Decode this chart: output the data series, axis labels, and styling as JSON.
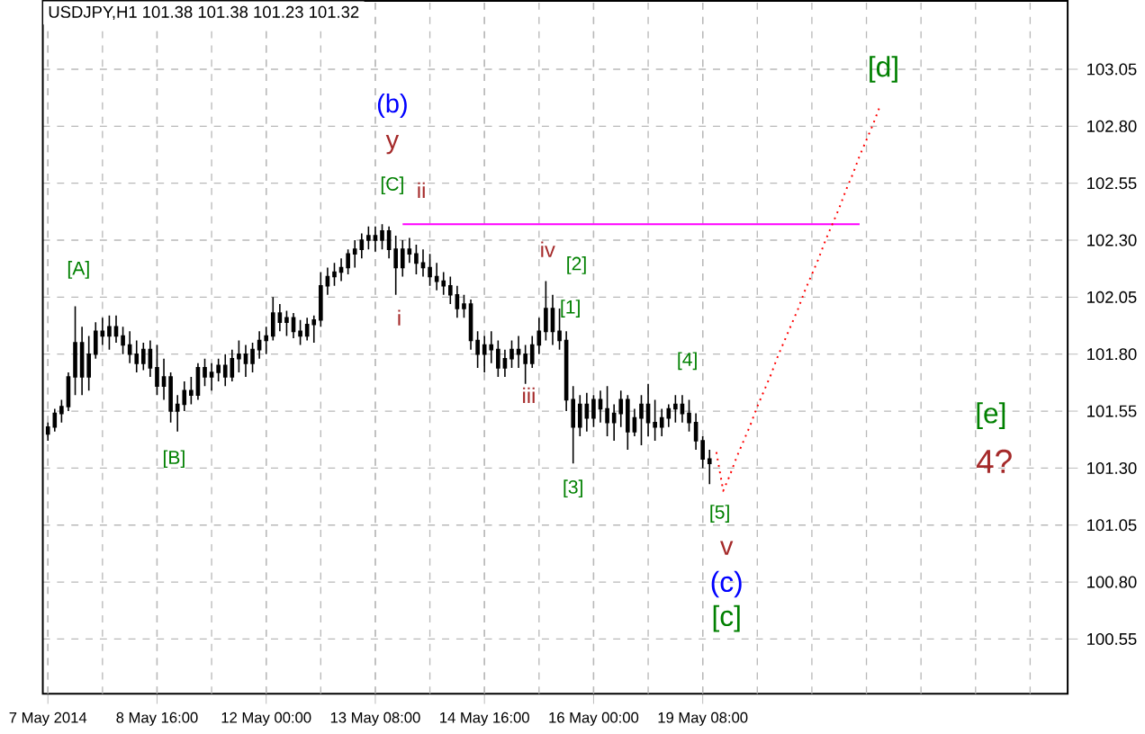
{
  "chart_data": {
    "type": "candlestick",
    "title": "USDJPY,H1  101.38 101.38 101.23 101.32",
    "color": "#000000",
    "categories": [
      "7 May 2014",
      null,
      null,
      null,
      null,
      null,
      null,
      null,
      null,
      null,
      null,
      null,
      null,
      null,
      null,
      null,
      "8 May 16:00",
      null,
      null,
      null,
      null,
      null,
      null,
      null,
      null,
      null,
      null,
      null,
      null,
      null,
      null,
      null,
      "12 May 00:00",
      null,
      null,
      null,
      null,
      null,
      null,
      null,
      null,
      null,
      null,
      null,
      null,
      null,
      null,
      null,
      "13 May 08:00",
      null,
      null,
      null,
      null,
      null,
      null,
      null,
      null,
      null,
      null,
      null,
      null,
      null,
      null,
      null,
      "14 May 16:00",
      null,
      null,
      null,
      null,
      null,
      null,
      null,
      null,
      null,
      null,
      null,
      null,
      null,
      null,
      null,
      "16 May 00:00",
      null,
      null,
      null,
      null,
      null,
      null,
      null,
      null,
      null,
      null,
      null,
      null,
      null,
      null,
      null,
      "19 May 08:00",
      null,
      null,
      null,
      null,
      null,
      null,
      null,
      null,
      null,
      null,
      null,
      null,
      null,
      null,
      null,
      null,
      null,
      null,
      null,
      null,
      null,
      null,
      null,
      null,
      null,
      null,
      null,
      null,
      null,
      null,
      null,
      null,
      null,
      null,
      null,
      null,
      null,
      null,
      null,
      null,
      null,
      null,
      null,
      null,
      null,
      null,
      null,
      null,
      null,
      null,
      null,
      null,
      null
    ],
    "ohlc": [
      [
        101.45,
        101.5,
        101.42,
        101.48
      ],
      [
        101.48,
        101.56,
        101.46,
        101.54
      ],
      [
        101.54,
        101.6,
        101.5,
        101.57
      ],
      [
        101.57,
        101.72,
        101.55,
        101.7
      ],
      [
        101.7,
        102.01,
        101.62,
        101.85
      ],
      [
        101.85,
        101.92,
        101.62,
        101.7
      ],
      [
        101.7,
        101.88,
        101.64,
        101.8
      ],
      [
        101.8,
        101.94,
        101.78,
        101.9
      ],
      [
        101.9,
        101.96,
        101.84,
        101.88
      ],
      [
        101.88,
        101.97,
        101.82,
        101.92
      ],
      [
        101.92,
        101.97,
        101.85,
        101.88
      ],
      [
        101.88,
        101.92,
        101.8,
        101.84
      ],
      [
        101.84,
        101.9,
        101.76,
        101.8
      ],
      [
        101.8,
        101.86,
        101.72,
        101.76
      ],
      [
        101.76,
        101.85,
        101.73,
        101.82
      ],
      [
        101.82,
        101.86,
        101.7,
        101.74
      ],
      [
        101.74,
        101.84,
        101.62,
        101.66
      ],
      [
        101.66,
        101.78,
        101.6,
        101.7
      ],
      [
        101.7,
        101.72,
        101.5,
        101.55
      ],
      [
        101.55,
        101.62,
        101.46,
        101.58
      ],
      [
        101.58,
        101.68,
        101.55,
        101.64
      ],
      [
        101.64,
        101.7,
        101.58,
        101.62
      ],
      [
        101.62,
        101.76,
        101.6,
        101.74
      ],
      [
        101.74,
        101.78,
        101.66,
        101.7
      ],
      [
        101.7,
        101.76,
        101.64,
        101.72
      ],
      [
        101.72,
        101.78,
        101.68,
        101.75
      ],
      [
        101.75,
        101.8,
        101.66,
        101.7
      ],
      [
        101.7,
        101.82,
        101.68,
        101.78
      ],
      [
        101.78,
        101.86,
        101.72,
        101.8
      ],
      [
        101.8,
        101.84,
        101.7,
        101.76
      ],
      [
        101.76,
        101.85,
        101.72,
        101.82
      ],
      [
        101.82,
        101.9,
        101.78,
        101.86
      ],
      [
        101.86,
        101.92,
        101.8,
        101.88
      ],
      [
        101.88,
        102.05,
        101.86,
        101.98
      ],
      [
        101.98,
        102.02,
        101.9,
        101.94
      ],
      [
        101.94,
        101.99,
        101.88,
        101.96
      ],
      [
        101.96,
        101.98,
        101.87,
        101.9
      ],
      [
        101.9,
        101.95,
        101.84,
        101.88
      ],
      [
        101.88,
        101.96,
        101.86,
        101.93
      ],
      [
        101.93,
        101.97,
        101.85,
        101.95
      ],
      [
        101.95,
        102.16,
        101.92,
        102.1
      ],
      [
        102.1,
        102.18,
        102.06,
        102.14
      ],
      [
        102.14,
        102.2,
        102.1,
        102.16
      ],
      [
        102.16,
        102.22,
        102.12,
        102.18
      ],
      [
        102.18,
        102.26,
        102.15,
        102.24
      ],
      [
        102.24,
        102.3,
        102.18,
        102.26
      ],
      [
        102.26,
        102.33,
        102.22,
        102.3
      ],
      [
        102.3,
        102.36,
        102.26,
        102.32
      ],
      [
        102.32,
        102.36,
        102.25,
        102.3
      ],
      [
        102.3,
        102.37,
        102.26,
        102.34
      ],
      [
        102.34,
        102.36,
        102.22,
        102.26
      ],
      [
        102.26,
        102.32,
        102.06,
        102.18
      ],
      [
        102.18,
        102.3,
        102.14,
        102.26
      ],
      [
        102.26,
        102.31,
        102.2,
        102.24
      ],
      [
        102.24,
        102.28,
        102.15,
        102.2
      ],
      [
        102.2,
        102.26,
        102.14,
        102.18
      ],
      [
        102.18,
        102.24,
        102.1,
        102.14
      ],
      [
        102.14,
        102.2,
        102.08,
        102.12
      ],
      [
        102.12,
        102.16,
        102.06,
        102.1
      ],
      [
        102.1,
        102.14,
        102.02,
        102.06
      ],
      [
        102.06,
        102.1,
        101.96,
        102.0
      ],
      [
        102.0,
        102.06,
        101.96,
        102.02
      ],
      [
        102.02,
        102.04,
        101.82,
        101.86
      ],
      [
        101.86,
        101.9,
        101.74,
        101.8
      ],
      [
        101.8,
        101.88,
        101.72,
        101.84
      ],
      [
        101.84,
        101.9,
        101.76,
        101.82
      ],
      [
        101.82,
        101.86,
        101.7,
        101.74
      ],
      [
        101.74,
        101.82,
        101.7,
        101.78
      ],
      [
        101.78,
        101.86,
        101.74,
        101.82
      ],
      [
        101.82,
        101.88,
        101.74,
        101.8
      ],
      [
        101.8,
        101.84,
        101.67,
        101.76
      ],
      [
        101.76,
        101.88,
        101.74,
        101.84
      ],
      [
        101.84,
        101.96,
        101.8,
        101.9
      ],
      [
        101.9,
        102.12,
        101.86,
        102.0
      ],
      [
        102.0,
        102.06,
        101.84,
        101.9
      ],
      [
        101.9,
        102.0,
        101.82,
        101.86
      ],
      [
        101.86,
        101.9,
        101.55,
        101.6
      ],
      [
        101.6,
        101.66,
        101.32,
        101.48
      ],
      [
        101.48,
        101.62,
        101.44,
        101.58
      ],
      [
        101.58,
        101.63,
        101.46,
        101.52
      ],
      [
        101.52,
        101.62,
        101.48,
        101.6
      ],
      [
        101.6,
        101.64,
        101.5,
        101.56
      ],
      [
        101.56,
        101.66,
        101.44,
        101.5
      ],
      [
        101.5,
        101.58,
        101.42,
        101.54
      ],
      [
        101.54,
        101.64,
        101.48,
        101.6
      ],
      [
        101.6,
        101.62,
        101.38,
        101.46
      ],
      [
        101.46,
        101.56,
        101.44,
        101.52
      ],
      [
        101.52,
        101.62,
        101.4,
        101.58
      ],
      [
        101.58,
        101.67,
        101.44,
        101.5
      ],
      [
        101.5,
        101.6,
        101.42,
        101.48
      ],
      [
        101.48,
        101.56,
        101.44,
        101.52
      ],
      [
        101.52,
        101.58,
        101.48,
        101.56
      ],
      [
        101.56,
        101.62,
        101.5,
        101.58
      ],
      [
        101.58,
        101.62,
        101.5,
        101.54
      ],
      [
        101.54,
        101.6,
        101.46,
        101.5
      ],
      [
        101.5,
        101.54,
        101.38,
        101.42
      ],
      [
        101.42,
        101.44,
        101.3,
        101.34
      ],
      [
        101.34,
        101.38,
        101.23,
        101.32
      ],
      null,
      null,
      null,
      null,
      null,
      null,
      null,
      null,
      null,
      null,
      null,
      null,
      null,
      null,
      null,
      null,
      null,
      null,
      null,
      null,
      null,
      null,
      null,
      null,
      null,
      null,
      null,
      null,
      null,
      null,
      null,
      null,
      null,
      null,
      null,
      null,
      null,
      null,
      null,
      null,
      null,
      null,
      null,
      null,
      null,
      null,
      null,
      null,
      null,
      null,
      null,
      null
    ],
    "series": [
      {
        "type": "line",
        "color": "#ff00ff",
        "line_style": "solid",
        "values": [
          null,
          null,
          null,
          null,
          null,
          null,
          null,
          null,
          null,
          null,
          null,
          null,
          null,
          null,
          null,
          null,
          null,
          null,
          null,
          null,
          null,
          null,
          null,
          null,
          null,
          null,
          null,
          null,
          null,
          null,
          null,
          null,
          null,
          null,
          null,
          null,
          null,
          null,
          null,
          null,
          null,
          null,
          null,
          null,
          null,
          null,
          null,
          null,
          null,
          null,
          null,
          null,
          102.37,
          102.37,
          102.37,
          102.37,
          102.37,
          102.37,
          102.37,
          102.37,
          102.37,
          102.37,
          102.37,
          102.37,
          102.37,
          102.37,
          102.37,
          102.37,
          102.37,
          102.37,
          102.37,
          102.37,
          102.37,
          102.37,
          102.37,
          102.37,
          102.37,
          102.37,
          102.37,
          102.37,
          102.37,
          102.37,
          102.37,
          102.37,
          102.37,
          102.37,
          102.37,
          102.37,
          102.37,
          102.37,
          102.37,
          102.37,
          102.37,
          102.37,
          102.37,
          102.37,
          102.37,
          102.37,
          102.37,
          102.37,
          102.37,
          102.37,
          102.37,
          102.37,
          102.37,
          102.37,
          102.37,
          102.37,
          102.37,
          102.37,
          102.37,
          102.37,
          102.37,
          102.37,
          102.37,
          102.37,
          102.37,
          102.37,
          102.37,
          102.37,
          null,
          null,
          null,
          null,
          null,
          null,
          null,
          null,
          null,
          null,
          null,
          null,
          null,
          null,
          null,
          null,
          null,
          null,
          null,
          null,
          null,
          null,
          null,
          null,
          null,
          null,
          null,
          null,
          null,
          null
        ]
      },
      {
        "type": "line",
        "color": "#ff0000",
        "line_style": "dotted",
        "values": [
          null,
          null,
          null,
          null,
          null,
          null,
          null,
          null,
          null,
          null,
          null,
          null,
          null,
          null,
          null,
          null,
          null,
          null,
          null,
          null,
          null,
          null,
          null,
          null,
          null,
          null,
          null,
          null,
          null,
          null,
          null,
          null,
          null,
          null,
          null,
          null,
          null,
          null,
          null,
          null,
          null,
          null,
          null,
          null,
          null,
          null,
          null,
          null,
          null,
          null,
          null,
          null,
          null,
          null,
          null,
          null,
          null,
          null,
          null,
          null,
          null,
          null,
          null,
          null,
          null,
          null,
          null,
          null,
          null,
          null,
          null,
          null,
          null,
          null,
          null,
          null,
          null,
          null,
          null,
          null,
          null,
          null,
          null,
          null,
          null,
          null,
          null,
          null,
          null,
          null,
          null,
          null,
          null,
          null,
          null,
          null,
          null,
          null,
          101.37,
          101.2,
          101.27,
          101.35,
          101.42,
          101.49,
          101.57,
          101.64,
          101.71,
          101.79,
          101.86,
          101.93,
          102.0,
          102.08,
          102.15,
          102.22,
          102.3,
          102.37,
          102.44,
          102.52,
          102.59,
          102.67,
          102.74,
          102.81,
          102.89,
          null,
          null,
          null,
          null,
          null,
          null,
          null,
          null,
          null,
          null,
          null,
          null,
          null,
          null,
          null,
          null,
          null,
          null,
          null,
          null,
          null,
          null,
          null,
          null,
          null,
          null,
          null
        ]
      }
    ],
    "ylim": [
      100.31,
      103.35
    ],
    "yticks": [
      100.55,
      {
        "value": 100.8,
        "label": "100.80"
      },
      101.05,
      {
        "value": 101.3,
        "label": "101.30"
      },
      101.55,
      {
        "value": 101.8,
        "label": "101.80"
      },
      102.05,
      {
        "value": 102.3,
        "label": "102.30"
      },
      102.55,
      {
        "value": 102.8,
        "label": "102.80"
      },
      103.05
    ],
    "grid": true,
    "annotations": [
      "[A]",
      "[B]",
      "[C]",
      "ii",
      "(b)",
      "y",
      "i",
      "iv",
      "[2]",
      "[1]",
      "iii",
      "[3]",
      "[4]",
      "[5]",
      "v",
      "(c)",
      "[c]",
      "[d]",
      "[e]",
      "4?"
    ]
  }
}
